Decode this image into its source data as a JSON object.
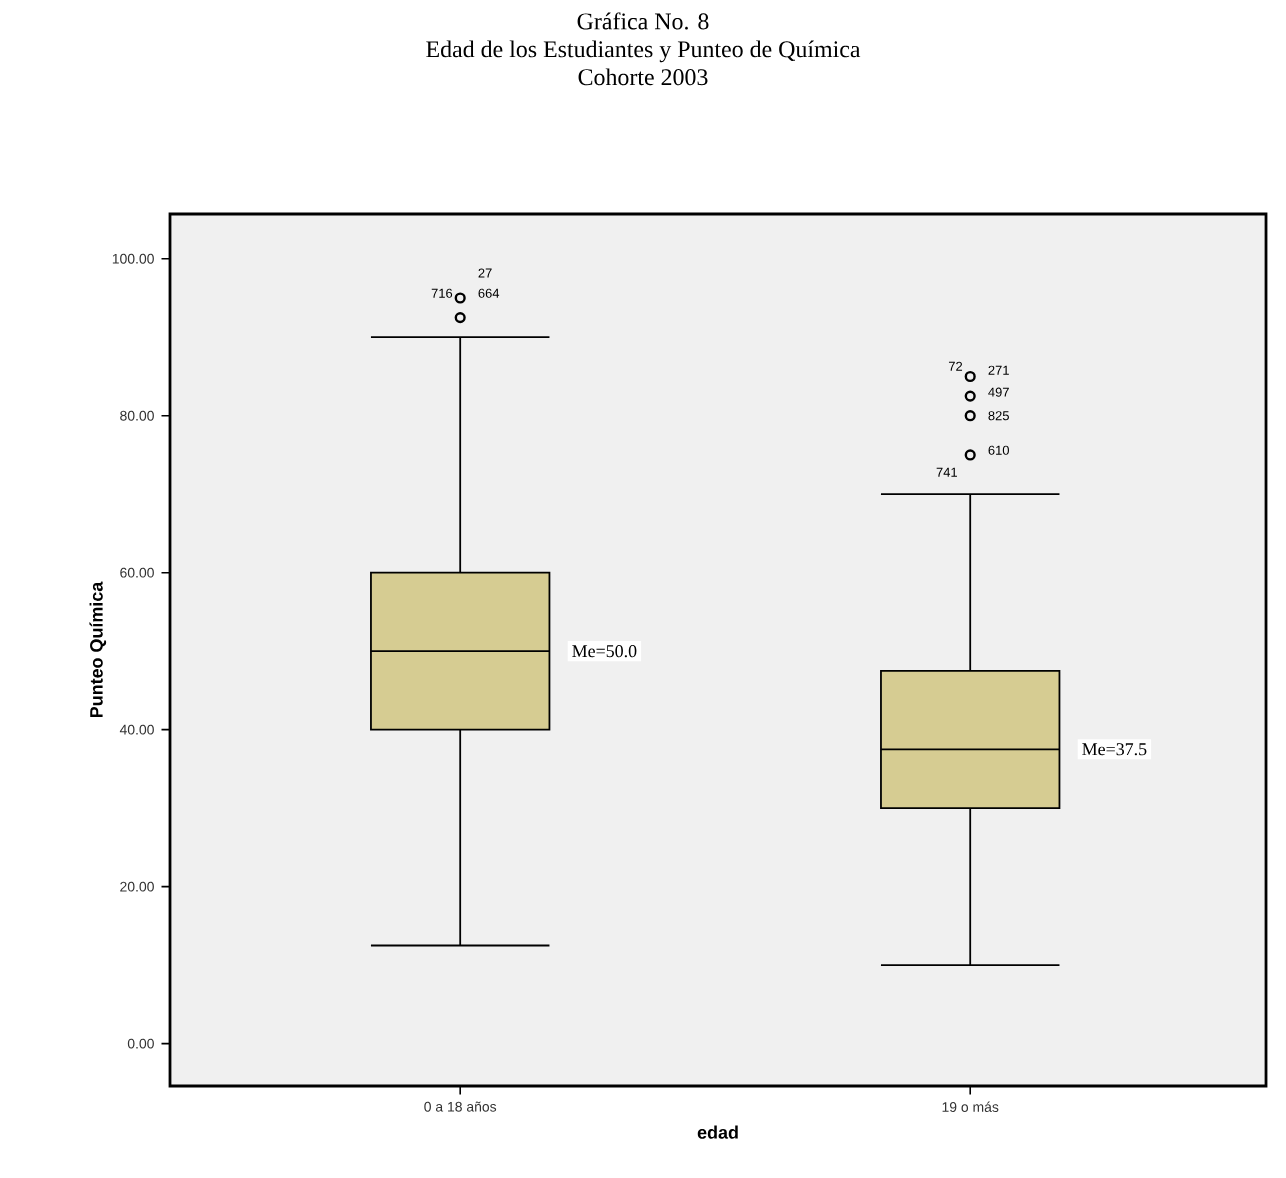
{
  "chart_data": {
    "type": "box",
    "title": "Gráfica No. 8",
    "subtitle": "Edad de los Estudiantes y Punteo de Química\nCohorte 2003",
    "xlabel": "edad",
    "ylabel": "Punteo Química",
    "categories": [
      "0 a 18 años",
      "19 o más"
    ],
    "color": "#d6cc92",
    "boxes": [
      {
        "low": 12.5,
        "q1": 40,
        "median": 50,
        "q3": 60,
        "high": 90,
        "outliers": [
          95,
          92.5
        ]
      },
      {
        "low": 10,
        "q1": 30,
        "median": 37.5,
        "q3": 47.5,
        "high": 70,
        "outliers": [
          85,
          82.5,
          80,
          75
        ]
      }
    ],
    "ylim": [
      -5.4,
      105.7
    ],
    "yticks": [
      {
        "value": 0,
        "label": "0.00"
      },
      {
        "value": 20,
        "label": "20.00"
      },
      {
        "value": 40,
        "label": "40.00"
      },
      {
        "value": 60,
        "label": "60.00"
      },
      {
        "value": 80,
        "label": "80.00"
      },
      {
        "value": 100,
        "label": "100.00"
      }
    ],
    "marker": "circle",
    "grid": false,
    "annotations": [
      "27",
      "716",
      "664",
      "72",
      "271",
      "497",
      "825",
      "610",
      "741",
      "Me=50.0",
      "Me=37.5"
    ]
  }
}
